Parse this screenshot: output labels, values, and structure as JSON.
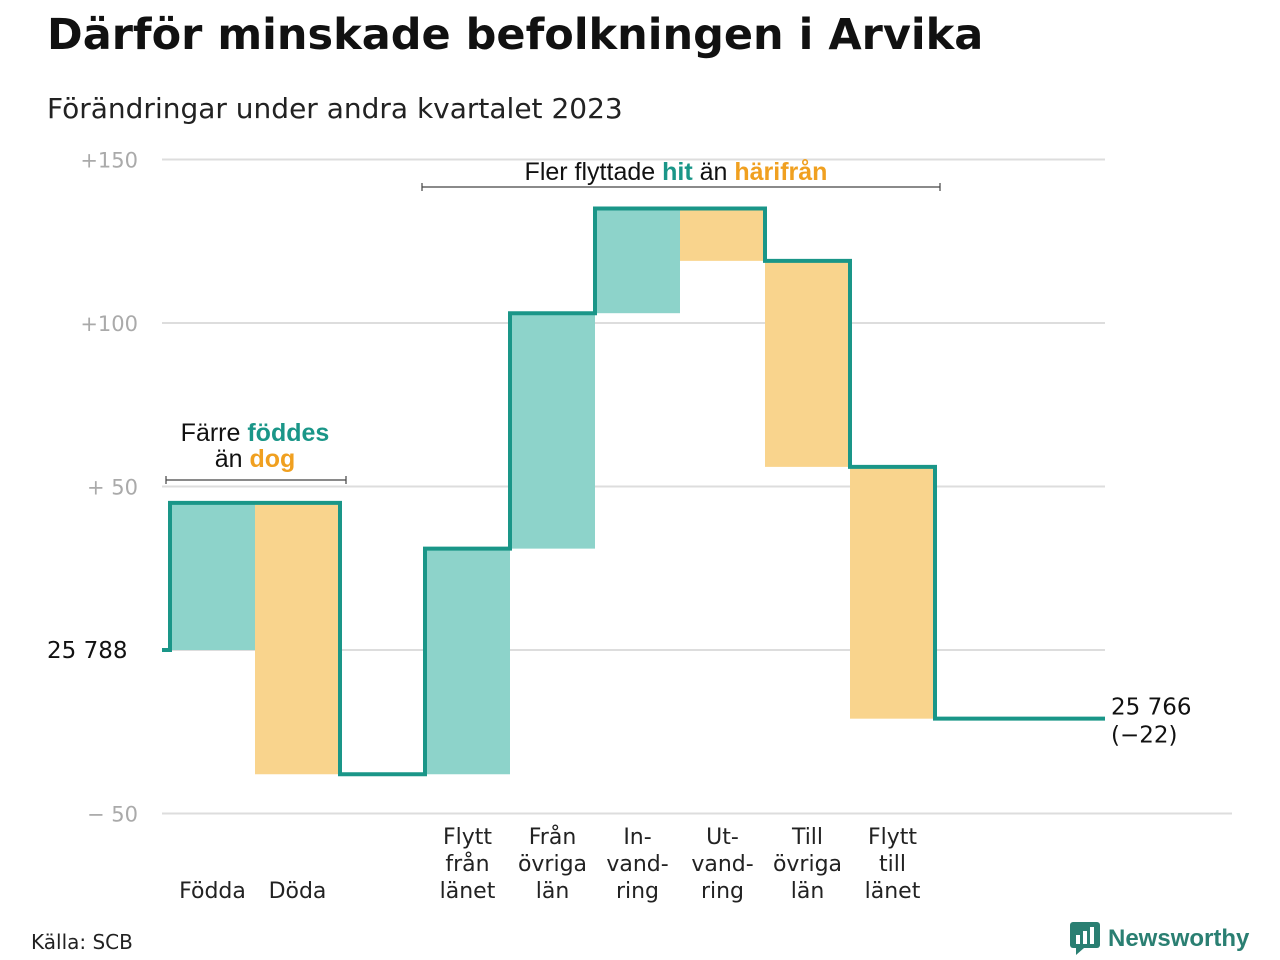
{
  "title": "Därför minskade befolkningen i Arvika",
  "subtitle": "Förändringar under andra kvartalet 2023",
  "source": "Källa: SCB",
  "brand": "Newsworthy",
  "colors": {
    "line": "#1a9688",
    "increase_fill": "#8dd3ca",
    "decrease_fill": "#f9d48d",
    "teal_text": "#1a9688",
    "orange_text": "#f0a020",
    "grid": "#dddddd",
    "tick_text": "#aaaaaa"
  },
  "chart_data": {
    "type": "waterfall",
    "start_label": "25 788",
    "end_label": "25 766",
    "end_change": "(−22)",
    "start_value": 0,
    "y_ticks": [
      {
        "value": 150,
        "label": "+150"
      },
      {
        "value": 100,
        "label": "+100"
      },
      {
        "value": 50,
        "label": "+  50"
      },
      {
        "value": -50,
        "label": "−  50"
      }
    ],
    "ylim": [
      -50,
      150
    ],
    "steps": [
      {
        "label": [
          "Födda"
        ],
        "change": 45,
        "kind": "increase"
      },
      {
        "label": [
          "Döda"
        ],
        "change": -83,
        "kind": "decrease"
      },
      {
        "label": [],
        "change": 0,
        "kind": "spacer"
      },
      {
        "label": [
          "Flytt",
          "från",
          "länet"
        ],
        "change": 69,
        "kind": "increase"
      },
      {
        "label": [
          "Från",
          "övriga",
          "län"
        ],
        "change": 72,
        "kind": "increase"
      },
      {
        "label": [
          "In-",
          "vand-",
          "ring"
        ],
        "change": 32,
        "kind": "increase"
      },
      {
        "label": [
          "Ut-",
          "vand-",
          "ring"
        ],
        "change": -16,
        "kind": "decrease"
      },
      {
        "label": [
          "Till",
          "övriga",
          "län"
        ],
        "change": -63,
        "kind": "decrease"
      },
      {
        "label": [
          "Flytt",
          "till",
          "länet"
        ],
        "change": -77,
        "kind": "decrease"
      }
    ],
    "annotations": [
      {
        "lines": [
          [
            {
              "text": "Färre ",
              "style": "plain"
            },
            {
              "text": "föddes",
              "style": "teal"
            }
          ],
          [
            {
              "text": "än ",
              "style": "plain"
            },
            {
              "text": "dog",
              "style": "orange"
            }
          ]
        ]
      },
      {
        "lines": [
          [
            {
              "text": "Fler flyttade ",
              "style": "plain"
            },
            {
              "text": "hit",
              "style": "teal"
            },
            {
              "text": "  än ",
              "style": "plain"
            },
            {
              "text": "härifrån",
              "style": "orange"
            }
          ]
        ]
      }
    ]
  }
}
